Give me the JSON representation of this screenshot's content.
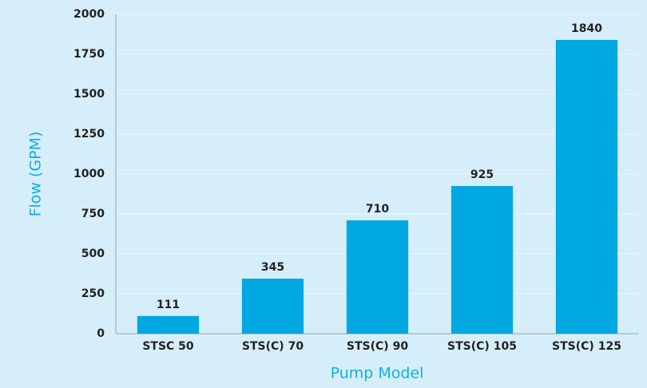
{
  "chart_data": {
    "type": "bar",
    "xlabel": "Pump Model",
    "ylabel": "Flow (GPM)",
    "categories": [
      "STSC 50",
      "STS(C) 70",
      "STS(C) 90",
      "STS(C) 105",
      "STS(C) 125"
    ],
    "values": [
      111,
      345,
      710,
      925,
      1840
    ],
    "color": "#00a8e1",
    "ylim": [
      0,
      2000
    ],
    "yticks": [
      0,
      250,
      500,
      750,
      1000,
      1250,
      1500,
      1750,
      2000
    ],
    "grid": true
  }
}
